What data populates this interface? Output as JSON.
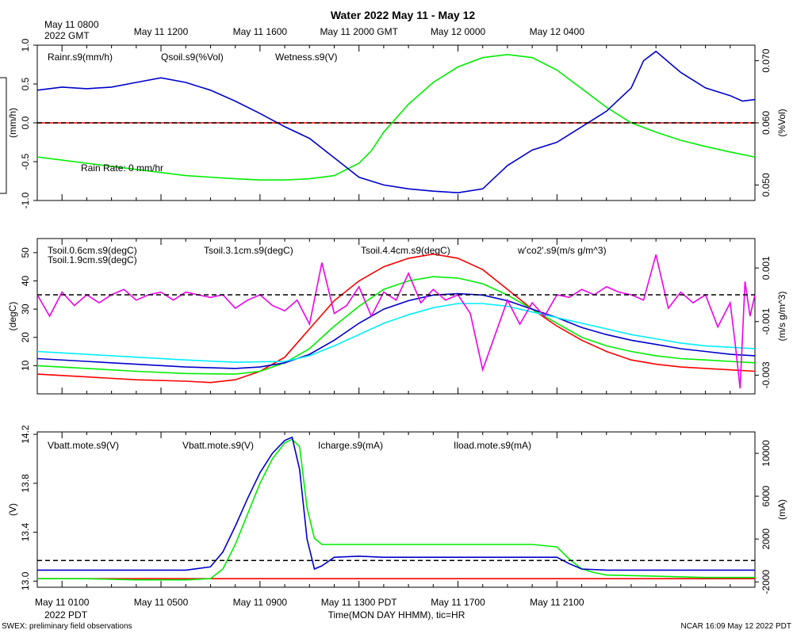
{
  "title": "Water 2022 May 11 - May 12",
  "top_axis": {
    "first_label_line1": "May 11 0800",
    "first_label_line2": "2022 GMT",
    "labels": [
      "May 11 1200",
      "May 11 1600",
      "May 11 2000 GMT",
      "May 12 0000",
      "May 12 0400"
    ]
  },
  "bottom_axis": {
    "labels": [
      "May 11 0100",
      "May 11 0500",
      "May 11 0900",
      "May 11 1300 PDT",
      "May 11 1700",
      "May 11 2100"
    ],
    "year_label": "2022 PDT",
    "title": "Time(MON DAY HHMM), tic=HR"
  },
  "footer": {
    "left": "SWEX: preliminary field observations",
    "right": "NCAR 16:09 May 12 2022 PDT"
  },
  "colors": {
    "red": "#ff0000",
    "green": "#00ee00",
    "blue": "#0000cc",
    "cyan": "#00eeff",
    "magenta": "#ee00ee",
    "black": "#000000"
  },
  "chart_data": [
    {
      "type": "line",
      "panel": "top",
      "x_unit": "hours since May 11 0000 PDT",
      "xlim": [
        0,
        29
      ],
      "left_axis": {
        "label": "(mm/h)",
        "ylim": [
          -1.0,
          1.0
        ],
        "ticks": [
          "-1.0",
          "-0.5",
          "0.0",
          "0.5",
          "1.0"
        ]
      },
      "right_axis": {
        "label": "(%Vol)",
        "ylim": [
          0.0475,
          0.0725
        ],
        "ticks": [
          "0.050",
          "0.060",
          "0.070"
        ]
      },
      "reference_line": 0.0,
      "annotation": "Rain Rate: 0 mm/hr",
      "series": [
        {
          "name": "Rainr.s9(mm/h)",
          "color": "#ff0000",
          "axis": "left",
          "x": [
            0,
            29
          ],
          "y": [
            0,
            0
          ]
        },
        {
          "name": "Qsoil.s9(%Vol)",
          "color": "#00ee00",
          "axis": "right",
          "x": [
            0,
            2,
            4,
            6,
            8,
            9,
            10,
            11,
            12,
            13,
            13.5,
            14,
            15,
            16,
            17,
            18,
            19,
            20,
            21,
            22,
            23,
            24,
            25,
            26,
            27,
            28,
            29
          ],
          "y": [
            0.0545,
            0.0535,
            0.0525,
            0.0515,
            0.051,
            0.0508,
            0.0508,
            0.051,
            0.0515,
            0.0535,
            0.0555,
            0.0585,
            0.063,
            0.0665,
            0.069,
            0.0705,
            0.071,
            0.0705,
            0.0685,
            0.0655,
            0.0625,
            0.06,
            0.0585,
            0.0572,
            0.0562,
            0.0553,
            0.0545
          ]
        },
        {
          "name": "Wetness.s9(V)",
          "color": "#0000cc",
          "axis": "left",
          "x": [
            0,
            1,
            2,
            3,
            4,
            5,
            6,
            7,
            8,
            9,
            10,
            11,
            12,
            13,
            14,
            15,
            16,
            17,
            18,
            19,
            20,
            21,
            22,
            23,
            24,
            24.5,
            25,
            26,
            27,
            28,
            28.5,
            29
          ],
          "y": [
            0.42,
            0.46,
            0.44,
            0.46,
            0.52,
            0.58,
            0.52,
            0.42,
            0.28,
            0.12,
            -0.05,
            -0.2,
            -0.45,
            -0.7,
            -0.8,
            -0.85,
            -0.88,
            -0.9,
            -0.85,
            -0.55,
            -0.35,
            -0.25,
            -0.05,
            0.15,
            0.45,
            0.8,
            0.92,
            0.65,
            0.45,
            0.35,
            0.28,
            0.3
          ]
        }
      ]
    },
    {
      "type": "line",
      "panel": "middle",
      "x_unit": "hours since May 11 0000 PDT",
      "xlim": [
        0,
        29
      ],
      "left_axis": {
        "label": "(degC)",
        "ylim": [
          0,
          55
        ],
        "ticks": [
          "10",
          "20",
          "30",
          "40",
          "50"
        ]
      },
      "right_axis": {
        "label": "(m/s g/m^3)",
        "ylim": [
          -0.0037,
          0.0021
        ],
        "ticks": [
          "-0.003",
          "-0.001",
          "0.001"
        ]
      },
      "reference_line_right": 0.0,
      "series": [
        {
          "name": "Tsoil.0.6cm.s9(degC)",
          "color": "#ff0000",
          "axis": "left",
          "x": [
            0,
            2,
            4,
            6,
            7,
            8,
            9,
            10,
            11,
            12,
            13,
            14,
            15,
            16,
            17,
            18,
            19,
            20,
            21,
            22,
            23,
            24,
            25,
            26,
            27,
            28,
            29
          ],
          "y": [
            7,
            6,
            5,
            4.5,
            4,
            5,
            8,
            13,
            23,
            33,
            40,
            45,
            48,
            49.5,
            48,
            44,
            37,
            30,
            24,
            19,
            15,
            12,
            10.5,
            9.5,
            9,
            8.5,
            8
          ]
        },
        {
          "name": "Tsoil.1.9cm.s9(degC)",
          "color": "#00ee00",
          "axis": "left",
          "x": [
            0,
            2,
            4,
            6,
            8,
            9,
            10,
            11,
            12,
            13,
            14,
            15,
            16,
            17,
            18,
            19,
            20,
            21,
            22,
            23,
            24,
            25,
            26,
            27,
            28,
            29
          ],
          "y": [
            10,
            9,
            8,
            7.2,
            7,
            8,
            11,
            16,
            24,
            31,
            37,
            40,
            41.5,
            41,
            39,
            35,
            30,
            25,
            20,
            17,
            15,
            13.5,
            12.5,
            12,
            11.5,
            11
          ]
        },
        {
          "name": "Tsoil.3.1cm.s9(degC)",
          "color": "#0000cc",
          "axis": "left",
          "x": [
            0,
            2,
            4,
            6,
            8,
            9,
            10,
            11,
            12,
            13,
            14,
            15,
            16,
            17,
            18,
            19,
            20,
            21,
            22,
            23,
            24,
            25,
            26,
            27,
            28,
            29
          ],
          "y": [
            12.5,
            11.5,
            10.5,
            9.5,
            9,
            9.5,
            11,
            14,
            19,
            25,
            30,
            33,
            35,
            35.5,
            35,
            33,
            30,
            27,
            23.5,
            21,
            19,
            17.5,
            16,
            15,
            14,
            13.5
          ]
        },
        {
          "name": "Tsoil.4.4cm.s9(degC)",
          "color": "#00eeff",
          "axis": "left",
          "x": [
            0,
            2,
            4,
            6,
            8,
            10,
            11,
            12,
            13,
            14,
            15,
            16,
            17,
            18,
            19,
            20,
            21,
            22,
            23,
            24,
            25,
            26,
            27,
            28,
            29
          ],
          "y": [
            15,
            14,
            13,
            12,
            11.2,
            11.5,
            13.5,
            17,
            21,
            25,
            28,
            30.5,
            32,
            32,
            31,
            29,
            27,
            25,
            23,
            21,
            19.5,
            18,
            17,
            16.5,
            16
          ]
        },
        {
          "name": "w'co2'.s9(m/s g/m^3)",
          "color": "#ee00ee",
          "axis": "right",
          "x": [
            0,
            0.5,
            1,
            1.5,
            2,
            2.5,
            3,
            3.5,
            4,
            4.5,
            5,
            5.5,
            6,
            6.5,
            7,
            7.5,
            8,
            8.5,
            9,
            9.5,
            10,
            10.5,
            11,
            11.5,
            12,
            12.5,
            13,
            13.5,
            14,
            14.5,
            15,
            15.5,
            16,
            16.5,
            17,
            17.5,
            18,
            18.5,
            19,
            19.5,
            20,
            20.5,
            21,
            21.5,
            22,
            22.5,
            23,
            23.5,
            24,
            24.5,
            25,
            25.5,
            26,
            26.5,
            27,
            27.5,
            28,
            28.2,
            28.4,
            28.6,
            28.8,
            29
          ],
          "y": [
            0.0,
            -0.0008,
            0.0001,
            -0.0004,
            0.0,
            -0.0003,
            0.0,
            0.0002,
            -0.0002,
            0.0,
            0.0001,
            -0.0002,
            0.0001,
            0.0,
            -0.0001,
            0.0,
            -0.0005,
            -0.0002,
            0.0,
            -0.0004,
            -0.0006,
            -0.0002,
            -0.0011,
            0.0012,
            -0.0007,
            -0.0004,
            0.0003,
            -0.0008,
            0.0001,
            -0.0002,
            0.0008,
            -0.0003,
            0.0002,
            -0.0002,
            0.0,
            -0.0007,
            -0.0028,
            -0.0015,
            -0.0002,
            -0.0011,
            -0.0003,
            -0.0008,
            0.0,
            -0.0001,
            0.0002,
            0.0,
            0.0003,
            0.0001,
            0.0,
            -0.0002,
            0.0015,
            -0.0005,
            0.0001,
            -0.0003,
            0.0,
            -0.0012,
            -0.0003,
            -0.0018,
            -0.0035,
            0.0005,
            -0.0008,
            0.0
          ]
        }
      ]
    },
    {
      "type": "line",
      "panel": "bottom",
      "x_unit": "hours since May 11 0000 PDT",
      "xlim": [
        0,
        29
      ],
      "left_axis": {
        "label": "(V)",
        "ylim": [
          12.95,
          14.22
        ],
        "ticks": [
          "13.0",
          "13.4",
          "13.8",
          "14.2"
        ]
      },
      "right_axis": {
        "label": "(mA)",
        "ylim": [
          -2500,
          12000
        ],
        "ticks": [
          "-2000",
          "2000",
          "6000",
          "10000"
        ]
      },
      "reference_line_right": 0,
      "series": [
        {
          "name": "Vbatt.mote.s9(V)",
          "color": "#ff0000",
          "axis": "left",
          "x": [
            0,
            29
          ],
          "y": [
            13.02,
            13.02
          ]
        },
        {
          "name": "Vbatt.mote.s9(V)",
          "color": "#00ee00",
          "axis": "left",
          "x": [
            0,
            2,
            4,
            6,
            7,
            7.5,
            8,
            8.5,
            9,
            9.5,
            10,
            10.3,
            10.6,
            10.9,
            11.2,
            11.5,
            12,
            14,
            16,
            18,
            20,
            21,
            21.5,
            22,
            22.5,
            23,
            25,
            27,
            29
          ],
          "y": [
            13.02,
            13.02,
            13.01,
            13.01,
            13.02,
            13.1,
            13.3,
            13.55,
            13.8,
            14.0,
            14.13,
            14.16,
            14.1,
            13.6,
            13.35,
            13.3,
            13.3,
            13.3,
            13.3,
            13.3,
            13.3,
            13.28,
            13.18,
            13.1,
            13.07,
            13.05,
            13.04,
            13.03,
            13.03
          ]
        },
        {
          "name": "Icharge.s9(mA)",
          "color": "#0000cc",
          "axis": "right",
          "x": [
            0,
            2,
            4,
            6,
            7,
            7.5,
            8,
            8.5,
            9,
            9.5,
            10,
            10.3,
            10.6,
            10.9,
            11.2,
            11.5,
            12,
            13,
            14,
            16,
            18,
            20,
            21,
            21.5,
            22,
            23,
            25,
            27,
            29
          ],
          "y": [
            -900,
            -900,
            -900,
            -900,
            -600,
            800,
            3200,
            5800,
            8200,
            10000,
            11200,
            11500,
            8500,
            2000,
            -800,
            -500,
            300,
            400,
            300,
            300,
            300,
            300,
            300,
            -300,
            -800,
            -900,
            -900,
            -900,
            -900
          ]
        },
        {
          "name": "Iload.mote.s9(mA)",
          "color": "#00eeff",
          "axis": "right",
          "x": [],
          "y": []
        }
      ]
    }
  ]
}
